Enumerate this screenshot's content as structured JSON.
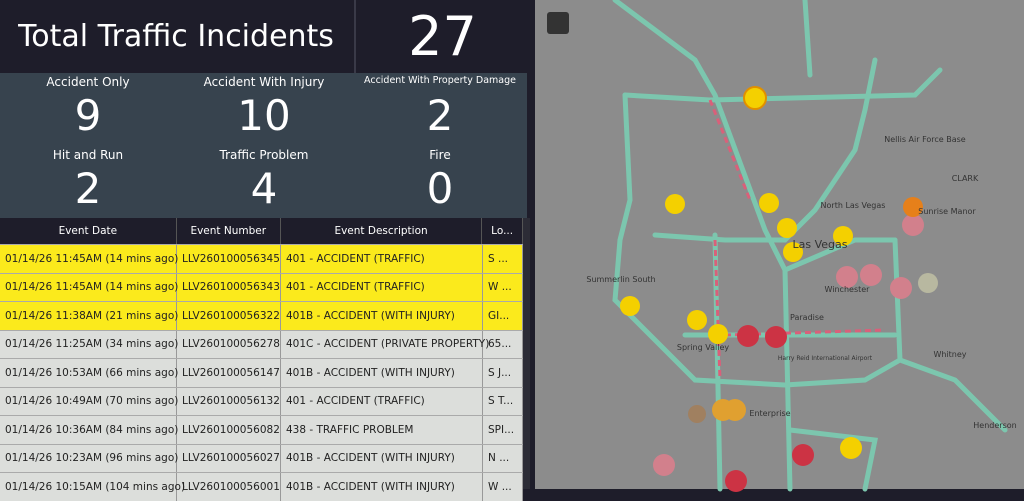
{
  "header": {
    "title": "Total Traffic Incidents",
    "total": "27"
  },
  "stats": [
    {
      "label": "Accident Only",
      "value": "9"
    },
    {
      "label": "Accident With Injury",
      "value": "10"
    },
    {
      "label": "Accident With Property Damage",
      "value": "2"
    },
    {
      "label": "Hit and Run",
      "value": "2"
    },
    {
      "label": "Traffic Problem",
      "value": "4"
    },
    {
      "label": "Fire",
      "value": "0"
    }
  ],
  "table": {
    "headers": [
      "Event Date",
      "Event Number",
      "Event Description",
      "Lo..."
    ],
    "rows": [
      [
        "01/14/26 11:45AM (14 mins ago)",
        "LLV260100056345",
        "401 - ACCIDENT (TRAFFIC)",
        "S ..."
      ],
      [
        "01/14/26 11:45AM (14 mins ago)",
        "LLV260100056343",
        "401 - ACCIDENT (TRAFFIC)",
        "W ..."
      ],
      [
        "01/14/26 11:38AM (21 mins ago)",
        "LLV260100056322",
        "401B - ACCIDENT (WITH INJURY)",
        "GI..."
      ],
      [
        "01/14/26 11:25AM (34 mins ago)",
        "LLV260100056278",
        "401C - ACCIDENT (PRIVATE PROPERTY)",
        "65..."
      ],
      [
        "01/14/26 10:53AM (66 mins ago)",
        "LLV260100056147",
        "401B - ACCIDENT (WITH INJURY)",
        "S J..."
      ],
      [
        "01/14/26 10:49AM (70 mins ago)",
        "LLV260100056132",
        "401 - ACCIDENT (TRAFFIC)",
        "S T..."
      ],
      [
        "01/14/26 10:36AM (84 mins ago)",
        "LLV260100056082",
        "438 - TRAFFIC PROBLEM",
        "SPI..."
      ],
      [
        "01/14/26 10:23AM (96 mins ago)",
        "LLV260100056027",
        "401B - ACCIDENT (WITH INJURY)",
        "N ..."
      ],
      [
        "01/14/26 10:15AM (104 mins ago)",
        "LLV260100056001",
        "401B - ACCIDENT (WITH INJURY)",
        "W ..."
      ]
    ]
  },
  "map": {
    "labels": [
      "Nellis Air Force Base",
      "CLARK",
      "North Las Vegas",
      "Sunrise Manor",
      "Las Vegas",
      "Summerlin South",
      "Winchester",
      "Paradise",
      "Spring Valley",
      "Harry Reid International Airport",
      "Whitney",
      "Enterprise",
      "Henderson"
    ]
  }
}
